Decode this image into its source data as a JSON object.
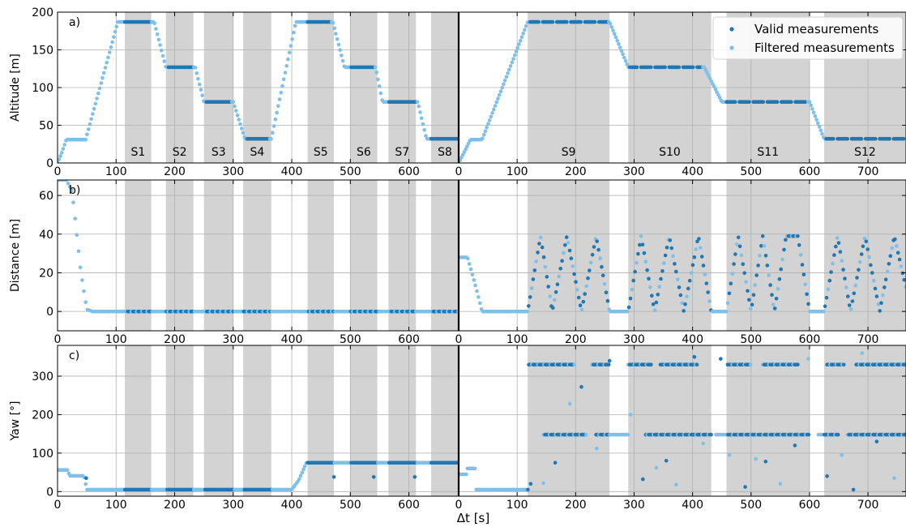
{
  "chart_data": {
    "type": "scatter",
    "x_label": "Δt [s]",
    "colors": {
      "valid": "#1f77b4",
      "filtered": "#7fbfe8",
      "shade": "#d3d3d3"
    },
    "legend": {
      "placement": "top-right of panel a (right half)",
      "entries": [
        "Valid measurements",
        "Filtered measurements"
      ]
    },
    "grid": true,
    "halves": [
      {
        "xlim": [
          0,
          685
        ],
        "xticks": [
          0,
          100,
          200,
          300,
          400,
          500,
          600
        ]
      },
      {
        "xlim": [
          0,
          765
        ],
        "xticks": [
          0,
          100,
          200,
          300,
          400,
          500,
          600,
          700
        ]
      }
    ],
    "panels": [
      {
        "letter": "a)",
        "ylabel": "Altitude [m]",
        "ylim": [
          0,
          200
        ],
        "yticks": [
          0,
          50,
          100,
          150,
          200
        ]
      },
      {
        "letter": "b)",
        "ylabel": "Distance [m]",
        "ylim": [
          -10,
          68
        ],
        "yticks": [
          0,
          20,
          40,
          60
        ]
      },
      {
        "letter": "c)",
        "ylabel": "Yaw [°]",
        "ylim": [
          -12,
          380
        ],
        "yticks": [
          0,
          100,
          200,
          300
        ]
      }
    ],
    "segments_left": [
      {
        "label": "S1",
        "start": 115,
        "end": 160,
        "altitude": 187
      },
      {
        "label": "S2",
        "start": 185,
        "end": 232,
        "altitude": 127
      },
      {
        "label": "S3",
        "start": 250,
        "end": 300,
        "altitude": 81
      },
      {
        "label": "S4",
        "start": 317,
        "end": 365,
        "altitude": 32
      },
      {
        "label": "S5",
        "start": 427,
        "end": 472,
        "altitude": 187
      },
      {
        "label": "S6",
        "start": 500,
        "end": 546,
        "altitude": 127
      },
      {
        "label": "S7",
        "start": 565,
        "end": 612,
        "altitude": 81
      },
      {
        "label": "S8",
        "start": 638,
        "end": 685,
        "altitude": 32
      }
    ],
    "segments_right": [
      {
        "label": "S9",
        "start": 118,
        "end": 258,
        "altitude": 187
      },
      {
        "label": "S10",
        "start": 290,
        "end": 432,
        "altitude": 127
      },
      {
        "label": "S11",
        "start": 458,
        "end": 600,
        "altitude": 81
      },
      {
        "label": "S12",
        "start": 625,
        "end": 765,
        "altitude": 32
      }
    ],
    "altitude_left": [
      [
        0,
        0
      ],
      [
        8,
        15
      ],
      [
        15,
        31
      ],
      [
        48,
        31
      ],
      [
        103,
        187
      ],
      [
        165,
        187
      ],
      [
        185,
        127
      ],
      [
        235,
        127
      ],
      [
        250,
        81
      ],
      [
        300,
        81
      ],
      [
        320,
        32
      ],
      [
        365,
        32
      ],
      [
        407,
        187
      ],
      [
        470,
        187
      ],
      [
        490,
        127
      ],
      [
        543,
        127
      ],
      [
        555,
        81
      ],
      [
        615,
        81
      ],
      [
        630,
        32
      ],
      [
        685,
        32
      ]
    ],
    "altitude_right": [
      [
        0,
        0
      ],
      [
        10,
        15
      ],
      [
        20,
        31
      ],
      [
        40,
        31
      ],
      [
        118,
        187
      ],
      [
        258,
        187
      ],
      [
        290,
        127
      ],
      [
        420,
        127
      ],
      [
        450,
        81
      ],
      [
        600,
        81
      ],
      [
        625,
        32
      ],
      [
        765,
        32
      ]
    ],
    "distance_left": [
      [
        0,
        68
      ],
      [
        15,
        68
      ],
      [
        25,
        62
      ],
      [
        40,
        20
      ],
      [
        50,
        1
      ],
      [
        60,
        0
      ],
      [
        685,
        0
      ]
    ],
    "distance_right": [
      [
        0,
        28
      ],
      [
        15,
        28
      ],
      [
        30,
        12
      ],
      [
        40,
        0
      ],
      [
        118,
        0
      ],
      [
        140,
        39
      ],
      [
        160,
        0
      ],
      [
        185,
        39
      ],
      [
        210,
        0
      ],
      [
        235,
        39
      ],
      [
        258,
        0
      ],
      [
        290,
        0
      ],
      [
        312,
        39
      ],
      [
        335,
        0
      ],
      [
        360,
        39
      ],
      [
        385,
        0
      ],
      [
        410,
        39
      ],
      [
        432,
        0
      ],
      [
        458,
        0
      ],
      [
        478,
        39
      ],
      [
        500,
        0
      ],
      [
        520,
        39
      ],
      [
        540,
        0
      ],
      [
        560,
        39
      ],
      [
        580,
        39
      ],
      [
        600,
        0
      ],
      [
        625,
        0
      ],
      [
        648,
        39
      ],
      [
        670,
        0
      ],
      [
        695,
        39
      ],
      [
        720,
        0
      ],
      [
        745,
        39
      ],
      [
        765,
        12
      ]
    ],
    "yaw_left": [
      [
        0,
        56
      ],
      [
        18,
        56
      ],
      [
        20,
        41
      ],
      [
        45,
        41
      ],
      [
        50,
        5
      ],
      [
        115,
        5
      ],
      [
        400,
        5
      ],
      [
        412,
        30
      ],
      [
        425,
        75
      ],
      [
        685,
        75
      ]
    ],
    "yaw_left_outliers": [
      [
        472,
        38
      ],
      [
        540,
        38
      ],
      [
        610,
        38
      ],
      [
        49,
        35
      ]
    ],
    "yaw_right_bands": [
      {
        "y": 330,
        "segments": [
          [
            120,
            200
          ],
          [
            228,
            258
          ],
          [
            290,
            330
          ],
          [
            345,
            410
          ],
          [
            460,
            500
          ],
          [
            520,
            580
          ],
          [
            630,
            660
          ],
          [
            680,
            765
          ]
        ]
      },
      {
        "y": 148,
        "segments": [
          [
            145,
            220
          ],
          [
            235,
            290
          ],
          [
            320,
            432
          ],
          [
            440,
            600
          ],
          [
            615,
            650
          ],
          [
            665,
            765
          ]
        ]
      },
      {
        "y": 5,
        "segments": [
          [
            30,
            120
          ]
        ]
      },
      {
        "y": 60,
        "segments": [
          [
            15,
            30
          ]
        ]
      },
      {
        "y": 45,
        "segments": [
          [
            0,
            15
          ]
        ]
      }
    ],
    "yaw_right_outliers": [
      [
        123,
        20
      ],
      [
        145,
        22
      ],
      [
        165,
        75
      ],
      [
        190,
        228
      ],
      [
        210,
        272
      ],
      [
        236,
        112
      ],
      [
        258,
        340
      ],
      [
        294,
        200
      ],
      [
        315,
        32
      ],
      [
        338,
        62
      ],
      [
        355,
        80
      ],
      [
        372,
        18
      ],
      [
        403,
        350
      ],
      [
        418,
        125
      ],
      [
        448,
        345
      ],
      [
        463,
        95
      ],
      [
        490,
        12
      ],
      [
        508,
        85
      ],
      [
        525,
        78
      ],
      [
        550,
        20
      ],
      [
        575,
        120
      ],
      [
        598,
        345
      ],
      [
        630,
        40
      ],
      [
        655,
        95
      ],
      [
        675,
        5
      ],
      [
        690,
        360
      ],
      [
        715,
        130
      ],
      [
        745,
        35
      ]
    ]
  }
}
